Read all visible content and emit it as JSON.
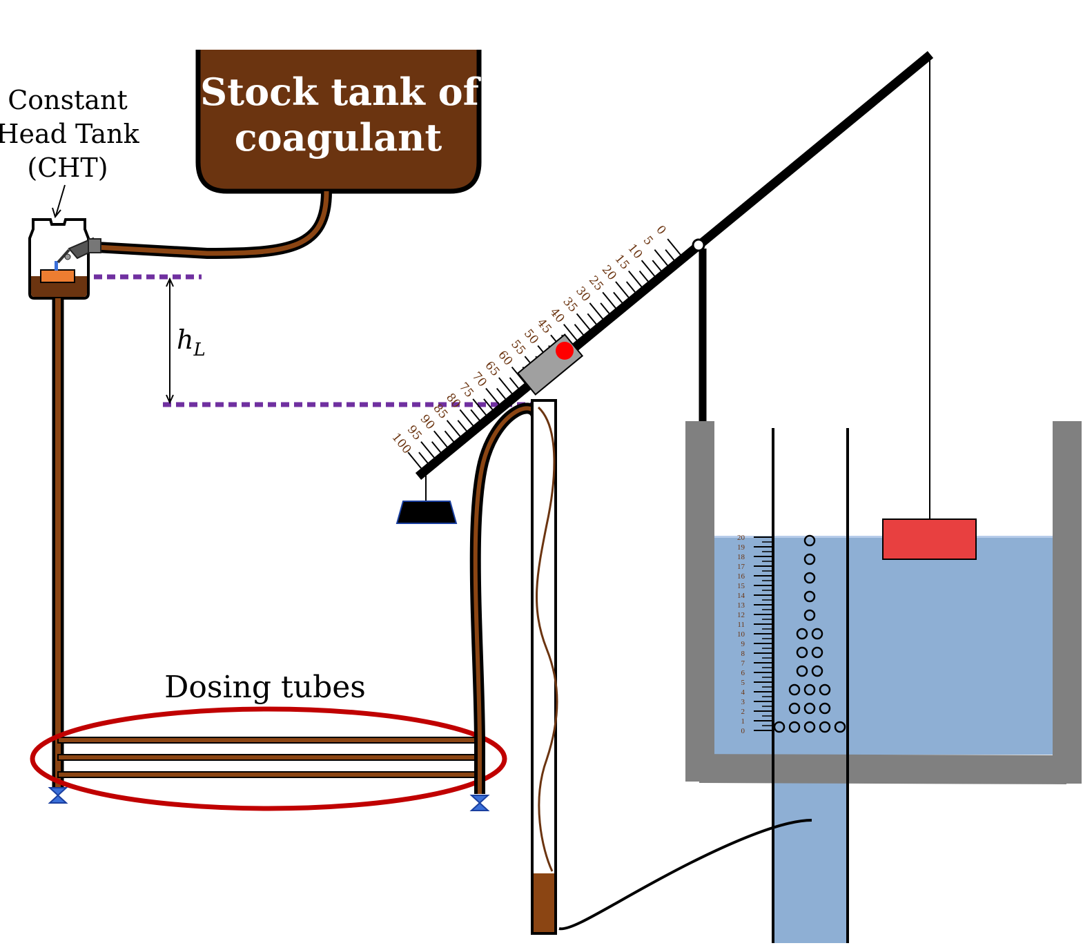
{
  "labels": {
    "cht_line1": "Constant",
    "cht_line2": "Head Tank",
    "cht_line3": "(CHT)",
    "stock_line1": "Stock tank of",
    "stock_line2": "coagulant",
    "head_loss_symbol": "h",
    "head_loss_subscript": "L",
    "dosing_tubes": "Dosing tubes"
  },
  "lever_scale": {
    "labels": [
      "0",
      "5",
      "10",
      "15",
      "20",
      "25",
      "30",
      "35",
      "40",
      "45",
      "50",
      "55",
      "60",
      "65",
      "70",
      "75",
      "80",
      "85",
      "90",
      "95",
      "100"
    ]
  },
  "float_scale": {
    "labels": [
      "0",
      "1",
      "2",
      "3",
      "4",
      "5",
      "6",
      "7",
      "8",
      "9",
      "10",
      "11",
      "12",
      "13",
      "14",
      "15",
      "16",
      "17",
      "18",
      "19",
      "20"
    ]
  },
  "colors": {
    "coagulant": "#6b3410",
    "tube_brown": "#8b4513",
    "water": "#8eafd4",
    "tank_wall": "#808080",
    "level_line": "#7030a0",
    "dosing_ellipse": "#c00000",
    "float": "#e84040",
    "slider_dot": "#ff0000",
    "cht_float": "#ed7d31"
  }
}
